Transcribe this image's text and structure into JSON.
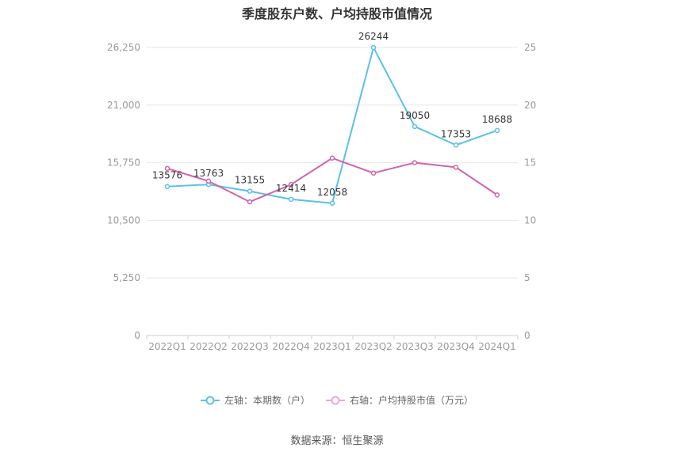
{
  "chart_data": {
    "type": "line",
    "title": "季度股东户数、户均持股市值情况",
    "categories": [
      "2022Q1",
      "2022Q2",
      "2022Q3",
      "2022Q4",
      "2023Q1",
      "2023Q2",
      "2023Q3",
      "2023Q4",
      "2024Q1"
    ],
    "left_axis": {
      "min": 0,
      "max": 26250,
      "ticks": [
        "0",
        "5,250",
        "10,500",
        "15,750",
        "21,000",
        "26,250"
      ]
    },
    "right_axis": {
      "min": 0,
      "max": 25,
      "ticks": [
        "0",
        "5",
        "10",
        "15",
        "20",
        "25"
      ]
    },
    "series": [
      {
        "name": "左轴：本期数（户）",
        "axis": "left",
        "color": "#5bc0eb",
        "values": [
          13576,
          13763,
          13155,
          12414,
          12058,
          26244,
          19050,
          17353,
          18688
        ],
        "labels": [
          "13576",
          "13763",
          "13155",
          "12414",
          "12058",
          "26244",
          "19050",
          "17353",
          "18688"
        ]
      },
      {
        "name": "右轴：户均持股市值（万元）",
        "axis": "right",
        "color": "#d063ad",
        "values": [
          14.5,
          13.4,
          11.6,
          13.1,
          15.4,
          14.1,
          15.0,
          14.6,
          12.2
        ]
      }
    ],
    "grid": true,
    "legend_position": "bottom"
  },
  "source": "数据来源：恒生聚源"
}
